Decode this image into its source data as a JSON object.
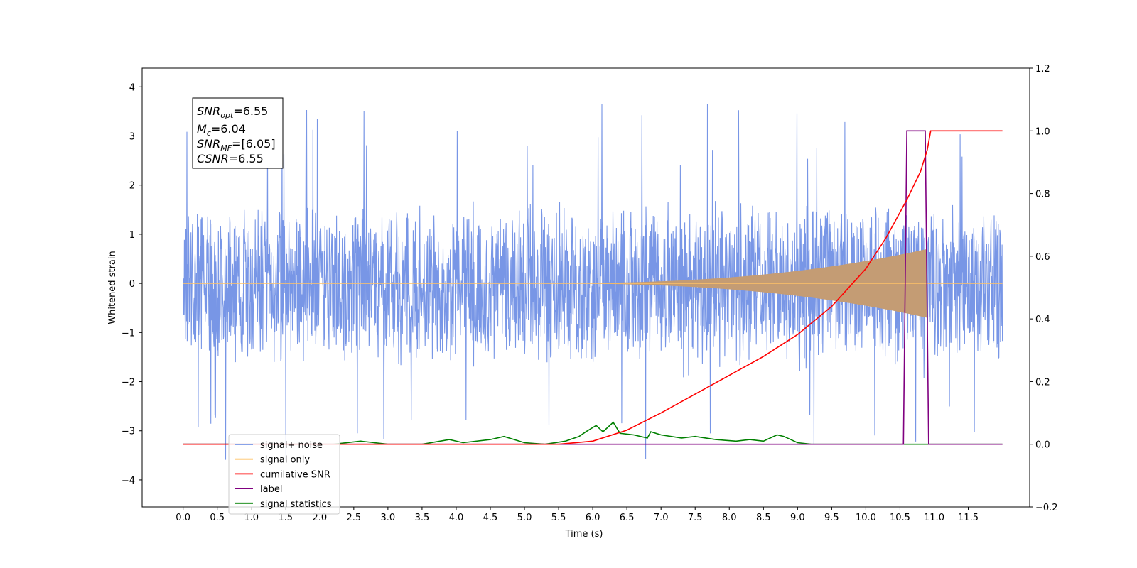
{
  "chart_data": {
    "type": "line",
    "xlabel": "Time (s)",
    "ylabel": "Whitened strain",
    "xlim": [
      -0.6,
      12.4
    ],
    "ylim": [
      -4.55,
      4.38
    ],
    "y2lim": [
      -0.2,
      1.2
    ],
    "x_ticks": [
      "0.0",
      "0.5",
      "1.0",
      "1.5",
      "2.0",
      "2.5",
      "3.0",
      "3.5",
      "4.0",
      "4.5",
      "5.0",
      "5.5",
      "6.0",
      "6.5",
      "7.0",
      "7.5",
      "8.0",
      "8.5",
      "9.0",
      "9.5",
      "10.0",
      "10.5",
      "11.0",
      "11.5"
    ],
    "y_ticks": [
      "4",
      "3",
      "2",
      "1",
      "0",
      "−1",
      "−2",
      "−3",
      "−4"
    ],
    "y2_ticks": [
      "1.2",
      "1.0",
      "0.8",
      "0.6",
      "0.4",
      "0.2",
      "0.0",
      "−0.2"
    ],
    "grid": false,
    "legend_position": "lower-left",
    "annotation": {
      "snr_opt": {
        "sym": "SNR",
        "sub": "opt",
        "val": "=6.55"
      },
      "mc": {
        "sym": "M",
        "sub": "c",
        "val": "=6.04"
      },
      "snr_mf": {
        "sym": "SNR",
        "sub": "MF",
        "val": "=[6.05]"
      },
      "csnr": {
        "sym": "CSNR",
        "val": "=6.55"
      }
    },
    "series": [
      {
        "name": "signal+ noise",
        "color": "#7896e6",
        "axis": "left",
        "noise_amplitude": 1.7,
        "x_range": [
          0.0,
          12.0
        ]
      },
      {
        "name": "signal only",
        "color": "#ffc266",
        "axis": "left",
        "chirp_start": 5.0,
        "chirp_peak_time": 10.9,
        "chirp_peak_amplitude": 0.7
      },
      {
        "name": "cumilative SNR",
        "color": "#ff0000",
        "axis": "right",
        "points": [
          [
            0.0,
            0.0
          ],
          [
            5.5,
            0.0
          ],
          [
            6.0,
            0.01
          ],
          [
            6.5,
            0.045
          ],
          [
            7.0,
            0.1
          ],
          [
            7.5,
            0.16
          ],
          [
            8.0,
            0.22
          ],
          [
            8.5,
            0.28
          ],
          [
            9.0,
            0.35
          ],
          [
            9.5,
            0.44
          ],
          [
            10.0,
            0.56
          ],
          [
            10.3,
            0.66
          ],
          [
            10.6,
            0.78
          ],
          [
            10.8,
            0.87
          ],
          [
            10.9,
            0.94
          ],
          [
            10.95,
            1.0
          ],
          [
            12.0,
            1.0
          ]
        ]
      },
      {
        "name": "label",
        "color": "#800080",
        "axis": "right",
        "points": [
          [
            0.0,
            0.0
          ],
          [
            10.55,
            0.0
          ],
          [
            10.6,
            1.0
          ],
          [
            10.87,
            1.0
          ],
          [
            10.92,
            0.0
          ],
          [
            12.0,
            0.0
          ]
        ]
      },
      {
        "name": "signal statistics",
        "color": "#008000",
        "axis": "right",
        "points": [
          [
            0.0,
            0.0
          ],
          [
            2.2,
            0.0
          ],
          [
            2.6,
            0.01
          ],
          [
            3.0,
            0.0
          ],
          [
            3.5,
            0.0
          ],
          [
            3.9,
            0.015
          ],
          [
            4.1,
            0.005
          ],
          [
            4.5,
            0.015
          ],
          [
            4.7,
            0.025
          ],
          [
            5.0,
            0.005
          ],
          [
            5.3,
            0.0
          ],
          [
            5.6,
            0.01
          ],
          [
            5.8,
            0.025
          ],
          [
            5.9,
            0.04
          ],
          [
            6.05,
            0.06
          ],
          [
            6.15,
            0.04
          ],
          [
            6.3,
            0.07
          ],
          [
            6.4,
            0.035
          ],
          [
            6.6,
            0.03
          ],
          [
            6.8,
            0.02
          ],
          [
            6.85,
            0.04
          ],
          [
            7.0,
            0.03
          ],
          [
            7.3,
            0.02
          ],
          [
            7.5,
            0.025
          ],
          [
            7.8,
            0.015
          ],
          [
            8.1,
            0.01
          ],
          [
            8.3,
            0.015
          ],
          [
            8.5,
            0.01
          ],
          [
            8.7,
            0.03
          ],
          [
            8.8,
            0.025
          ],
          [
            9.0,
            0.005
          ],
          [
            9.2,
            0.0
          ],
          [
            12.0,
            0.0
          ]
        ]
      }
    ]
  }
}
